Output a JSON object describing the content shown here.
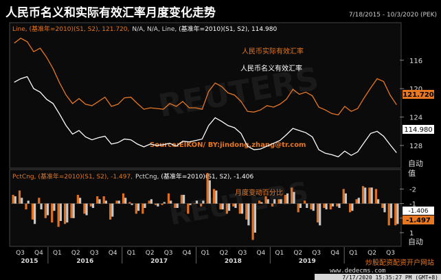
{
  "header": {
    "title": "人民币名义和实际有效汇率月度变化走势",
    "date_range": "7/18/2015 - 10/3/2020 (PEK)"
  },
  "upper_panel": {
    "legend_prefix": "Line, ",
    "legend_series1": "(基准年=2010)(S1, S2), 121.720,",
    "legend_mid": "N/A, N/A, Line, ",
    "legend_series2": "(基准年=2010)(S1, S2), 114.980",
    "label_real": "人民币实际有效汇率",
    "label_nominal": "人民币名义有效汇率",
    "source": "Source:EIKON/ BY:jindong.zhang@tr.com",
    "last_real": "121.720",
    "last_nominal": "114.980",
    "auto_label": "自动",
    "yticks": [
      "128",
      "124",
      "120",
      "116"
    ],
    "watermark": "REUTERS"
  },
  "lower_panel": {
    "legend_prefix": "PctCng, ",
    "legend_series1": "(基准年=2010)(S1, S2), -1.497,",
    "legend_mid": "PctCng, ",
    "legend_series2": "(基准年=2010)(S1, S2), -1.406",
    "label_change": "月度变动百分比",
    "value_label": "值",
    "last_real": "-1.497",
    "last_nominal": "-1.406",
    "auto_label": "自动",
    "yticks": [
      "1",
      "0",
      "-1",
      "-2"
    ],
    "watermark": "REUTERS"
  },
  "x_axis": {
    "quarters": [
      "Q3",
      "Q4",
      "Q1",
      "Q2",
      "Q3",
      "Q4",
      "Q1",
      "Q2",
      "Q3",
      "Q4",
      "Q1",
      "Q2",
      "Q3",
      "Q4",
      "Q1",
      "Q2",
      "Q3",
      "Q4",
      "Q1",
      "Q2",
      "Q3"
    ],
    "years": [
      "2015",
      "2016",
      "2017",
      "2018",
      "2019"
    ]
  },
  "footer": {
    "timestamp": "7/17/2020 15:35:27 PM (GMT+8)",
    "site_text": "炒股配资配资开户网站",
    "site_url": "www.dedecms.com"
  },
  "colors": {
    "real": "#e87722",
    "nominal": "#ffffff",
    "bar_real": "#e07020",
    "bar_nominal": "#c8c8c8",
    "title": "#ffffff",
    "source": "#e87722"
  },
  "chart_data": [
    {
      "type": "line",
      "title": "人民币名义和实际有效汇率月度变化走势",
      "x": [
        "2015-07",
        "2015-08",
        "2015-09",
        "2015-10",
        "2015-11",
        "2015-12",
        "2016-01",
        "2016-02",
        "2016-03",
        "2016-04",
        "2016-05",
        "2016-06",
        "2016-07",
        "2016-08",
        "2016-09",
        "2016-10",
        "2016-11",
        "2016-12",
        "2017-01",
        "2017-02",
        "2017-03",
        "2017-04",
        "2017-05",
        "2017-06",
        "2017-07",
        "2017-08",
        "2017-09",
        "2017-10",
        "2017-11",
        "2017-12",
        "2018-01",
        "2018-02",
        "2018-03",
        "2018-04",
        "2018-05",
        "2018-06",
        "2018-07",
        "2018-08",
        "2018-09",
        "2018-10",
        "2018-11",
        "2018-12",
        "2019-01",
        "2019-02",
        "2019-03",
        "2019-04",
        "2019-05",
        "2019-06",
        "2019-07",
        "2019-08",
        "2019-09",
        "2019-10",
        "2019-11",
        "2019-12",
        "2020-01",
        "2020-02",
        "2020-03",
        "2020-04",
        "2020-05",
        "2020-06"
      ],
      "series": [
        {
          "name": "人民币实际有效汇率",
          "values": [
            130.4,
            131.1,
            130.6,
            129.2,
            129.7,
            128.4,
            126.8,
            124.8,
            123.1,
            121.9,
            122.6,
            121.8,
            121.6,
            122.2,
            122.8,
            121.5,
            121.8,
            122.7,
            122.8,
            121.9,
            121.1,
            121.3,
            121.2,
            121.1,
            121.9,
            121.5,
            122.2,
            121.3,
            121.3,
            121.1,
            123.6,
            124.8,
            124.3,
            123.4,
            123.1,
            122.2,
            120.8,
            120.7,
            121.0,
            121.6,
            121.4,
            121.8,
            122.5,
            123.9,
            123.2,
            123.5,
            123.0,
            121.4,
            121.0,
            120.5,
            120.3,
            121.5,
            120.8,
            121.2,
            122.7,
            124.1,
            125.4,
            125.0,
            123.1,
            121.72
          ]
        },
        {
          "name": "人民币名义有效汇率",
          "values": [
            124.9,
            125.4,
            125.7,
            124.0,
            123.5,
            122.5,
            121.9,
            120.4,
            118.8,
            117.6,
            118.1,
            117.2,
            116.8,
            117.1,
            117.3,
            116.2,
            116.4,
            116.9,
            116.8,
            116.2,
            115.8,
            116.2,
            116.0,
            116.1,
            116.3,
            115.9,
            116.6,
            116.5,
            116.7,
            116.9,
            118.8,
            119.9,
            119.4,
            118.8,
            118.5,
            117.7,
            115.9,
            115.4,
            115.5,
            115.9,
            116.3,
            116.7,
            117.5,
            118.4,
            118.1,
            117.8,
            117.2,
            115.4,
            114.9,
            114.7,
            114.4,
            115.2,
            114.6,
            115.1,
            116.4,
            117.7,
            118.0,
            117.3,
            116.1,
            114.98
          ]
        }
      ],
      "ylim": [
        113,
        133
      ],
      "yticks": [
        116,
        120,
        124,
        128
      ],
      "xlabel": "",
      "ylabel": "",
      "grid": false,
      "legend": "top-left"
    },
    {
      "type": "bar",
      "title": "月度变动百分比",
      "x": [
        "2015-07",
        "2015-08",
        "2015-09",
        "2015-10",
        "2015-11",
        "2015-12",
        "2016-01",
        "2016-02",
        "2016-03",
        "2016-04",
        "2016-05",
        "2016-06",
        "2016-07",
        "2016-08",
        "2016-09",
        "2016-10",
        "2016-11",
        "2016-12",
        "2017-01",
        "2017-02",
        "2017-03",
        "2017-04",
        "2017-05",
        "2017-06",
        "2017-07",
        "2017-08",
        "2017-09",
        "2017-10",
        "2017-11",
        "2017-12",
        "2018-01",
        "2018-02",
        "2018-03",
        "2018-04",
        "2018-05",
        "2018-06",
        "2018-07",
        "2018-08",
        "2018-09",
        "2018-10",
        "2018-11",
        "2018-12",
        "2019-01",
        "2019-02",
        "2019-03",
        "2019-04",
        "2019-05",
        "2019-06",
        "2019-07",
        "2019-08",
        "2019-09",
        "2019-10",
        "2019-11",
        "2019-12",
        "2020-01",
        "2020-02",
        "2020-03",
        "2020-04",
        "2020-05",
        "2020-06"
      ],
      "series": [
        {
          "name": "人民币实际有效汇率",
          "values": [
            0.6,
            0.9,
            -0.4,
            -1.1,
            0.4,
            -1.0,
            -1.3,
            -1.6,
            -1.4,
            -1.0,
            0.6,
            -0.7,
            -0.2,
            0.5,
            0.5,
            -1.1,
            0.2,
            0.7,
            0.1,
            -0.7,
            -0.7,
            0.2,
            -0.1,
            -0.1,
            0.7,
            -0.3,
            0.6,
            -0.7,
            0.0,
            -0.2,
            2.1,
            1.0,
            -0.4,
            -0.7,
            -0.2,
            -0.7,
            -1.1,
            -2.5,
            0.2,
            0.5,
            -0.2,
            0.3,
            0.6,
            1.1,
            -0.6,
            0.2,
            -0.4,
            -1.3,
            -0.3,
            -0.4,
            -0.2,
            1.0,
            -0.6,
            0.3,
            1.2,
            1.1,
            1.0,
            -0.3,
            -1.5,
            -1.497
          ]
        },
        {
          "name": "人民币名义有效汇率",
          "values": [
            0.5,
            0.4,
            0.2,
            -1.4,
            -0.4,
            -0.8,
            -0.5,
            -1.2,
            -1.3,
            -1.0,
            0.4,
            -0.8,
            -0.3,
            0.3,
            0.2,
            -0.9,
            0.2,
            0.4,
            -0.1,
            -0.5,
            -0.3,
            0.3,
            -0.2,
            0.1,
            0.2,
            -0.3,
            0.6,
            -0.1,
            0.2,
            0.2,
            1.6,
            0.9,
            -0.4,
            -0.5,
            -0.3,
            -0.7,
            -1.5,
            -2.0,
            0.1,
            0.3,
            0.3,
            0.3,
            0.7,
            0.8,
            -0.3,
            -0.3,
            -0.5,
            -1.5,
            -0.4,
            -0.2,
            -0.3,
            0.7,
            -0.5,
            0.4,
            1.1,
            1.1,
            0.3,
            -0.6,
            -1.0,
            -1.406
          ]
        }
      ],
      "ylim": [
        -2.8,
        2.2
      ],
      "yticks": [
        -2,
        -1,
        0,
        1
      ],
      "xlabel": "",
      "ylabel": "值",
      "grid": false,
      "legend": "top-left"
    }
  ]
}
